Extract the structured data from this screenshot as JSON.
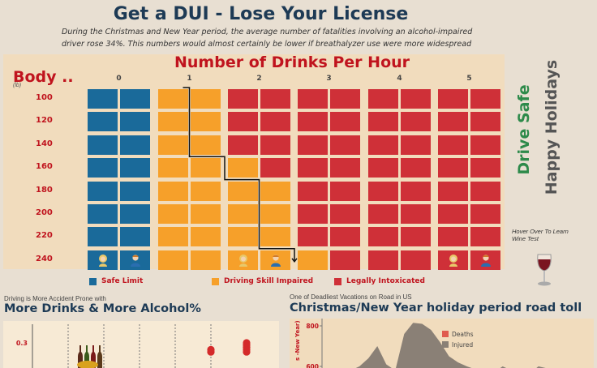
{
  "header": {
    "title": "Get a DUI - Lose Your License",
    "intro": "During the Christmas and New Year period, the average number of fatalities involving an alcohol-impaired driver rose 34%. This numbers would almost certainly be lower if breathalyzer use were more widespread"
  },
  "chart_data": [
    {
      "type": "heatmap",
      "title": "Number of Drinks Per Hour",
      "ylabel": "Body ..",
      "yunit": "(lb)",
      "drinks": [
        "0",
        "1",
        "2",
        "3",
        "4",
        "5"
      ],
      "weights": [
        "100",
        "120",
        "140",
        "160",
        "180",
        "200",
        "220",
        "240"
      ],
      "status_grid": [
        [
          "safe",
          "safe",
          "impaired",
          "impaired",
          "intox",
          "intox",
          "intox",
          "intox",
          "intox",
          "intox",
          "intox",
          "intox"
        ],
        [
          "safe",
          "safe",
          "impaired",
          "impaired",
          "intox",
          "intox",
          "intox",
          "intox",
          "intox",
          "intox",
          "intox",
          "intox"
        ],
        [
          "safe",
          "safe",
          "impaired",
          "impaired",
          "intox",
          "intox",
          "intox",
          "intox",
          "intox",
          "intox",
          "intox",
          "intox"
        ],
        [
          "safe",
          "safe",
          "impaired",
          "impaired",
          "impaired",
          "intox",
          "intox",
          "intox",
          "intox",
          "intox",
          "intox",
          "intox"
        ],
        [
          "safe",
          "safe",
          "impaired",
          "impaired",
          "impaired",
          "impaired",
          "intox",
          "intox",
          "intox",
          "intox",
          "intox",
          "intox"
        ],
        [
          "safe",
          "safe",
          "impaired",
          "impaired",
          "impaired",
          "impaired",
          "intox",
          "intox",
          "intox",
          "intox",
          "intox",
          "intox"
        ],
        [
          "safe",
          "safe",
          "impaired",
          "impaired",
          "impaired",
          "impaired",
          "intox",
          "intox",
          "intox",
          "intox",
          "intox",
          "intox"
        ],
        [
          "safe",
          "safe",
          "impaired",
          "impaired",
          "impaired",
          "impaired",
          "impaired",
          "intox",
          "intox",
          "intox",
          "intox",
          "intox"
        ]
      ],
      "people_row": 7,
      "people": [
        {
          "col": 0,
          "kind": "female"
        },
        {
          "col": 1,
          "kind": "male"
        },
        {
          "col": 4,
          "kind": "female"
        },
        {
          "col": 5,
          "kind": "male"
        },
        {
          "col": 10,
          "kind": "female"
        },
        {
          "col": 11,
          "kind": "male"
        }
      ],
      "threshold_steps": [
        {
          "weight": "100",
          "drinks": 1.5
        },
        {
          "weight": "160",
          "drinks": 2
        },
        {
          "weight": "180",
          "drinks": 2.5
        },
        {
          "weight": "240",
          "drinks": 3
        }
      ],
      "legend": [
        {
          "label": "Safe Limit",
          "key": "safe"
        },
        {
          "label": "Driving Skill Impaired",
          "key": "impaired"
        },
        {
          "label": "Legally Intoxicated",
          "key": "intox"
        }
      ],
      "colors": {
        "safe": "#1a6a9a",
        "impaired": "#f6a02a",
        "intox": "#cf3038"
      }
    },
    {
      "type": "scatter",
      "eyebrow": "Driving is More Accident Prone with",
      "title": "More Drinks & More Alcohol%",
      "y_ticks": [
        "0.3"
      ],
      "points_y": [
        0.22,
        0.24,
        0.26,
        0.28,
        0.3
      ]
    },
    {
      "type": "area",
      "eyebrow": "One of  Deadliest Vacations on Road in US",
      "title": "Christmas/New Year holiday period road toll",
      "ylabel": "s -New Year)",
      "y_ticks": [
        "800",
        "600"
      ],
      "ylim": [
        540,
        820
      ],
      "series": [
        {
          "name": "Deaths",
          "color": "#e05a4e"
        },
        {
          "name": "Injured",
          "color": "#8a8076",
          "values": [
            560,
            565,
            572,
            580,
            600,
            640,
            700,
            610,
            580,
            760,
            815,
            810,
            780,
            720,
            650,
            620,
            600,
            585,
            575,
            570,
            600,
            580,
            570,
            565,
            600,
            590,
            575,
            570,
            565,
            560
          ]
        }
      ]
    }
  ],
  "side": {
    "drive_safe": "Drive Safe",
    "happy_holidays": "Happy Holidays",
    "hover_note": "Hover Over To Learn Wine Test"
  }
}
